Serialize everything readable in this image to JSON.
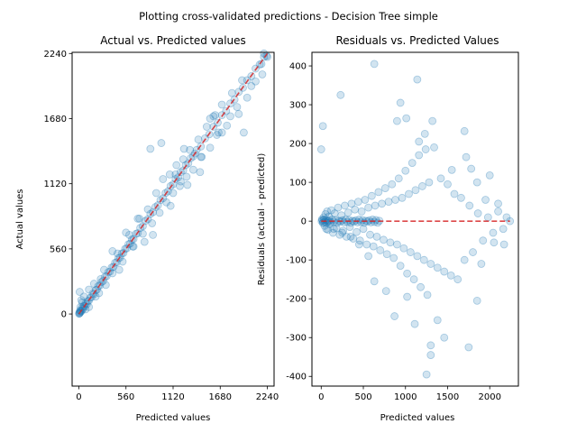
{
  "figure": {
    "suptitle": "Plotting cross-validated predictions - Decision Tree simple"
  },
  "chart_data": [
    {
      "type": "scatter",
      "title": "Actual vs. Predicted values",
      "xlabel": "Predicted values",
      "ylabel": "Actual values",
      "xlim": [
        -80,
        2320
      ],
      "ylim": [
        -620,
        2250
      ],
      "xticks": [
        0,
        560,
        1120,
        1680,
        2240
      ],
      "yticks": [
        0,
        560,
        1120,
        1680,
        2240
      ],
      "grid": false,
      "reference_line": {
        "from": [
          0,
          0
        ],
        "to": [
          2240,
          2240
        ],
        "style": "dashed",
        "color": "#d62728"
      },
      "point_color": "#1f77b4",
      "points": [
        [
          5,
          5
        ],
        [
          12,
          8
        ],
        [
          18,
          25
        ],
        [
          25,
          20
        ],
        [
          35,
          30
        ],
        [
          40,
          55
        ],
        [
          50,
          45
        ],
        [
          60,
          70
        ],
        [
          70,
          65
        ],
        [
          80,
          90
        ],
        [
          95,
          85
        ],
        [
          105,
          110
        ],
        [
          120,
          115
        ],
        [
          135,
          140
        ],
        [
          150,
          145
        ],
        [
          165,
          175
        ],
        [
          180,
          170
        ],
        [
          200,
          205
        ],
        [
          215,
          210
        ],
        [
          230,
          240
        ],
        [
          250,
          245
        ],
        [
          270,
          275
        ],
        [
          290,
          285
        ],
        [
          310,
          320
        ],
        [
          330,
          325
        ],
        [
          350,
          360
        ],
        [
          370,
          365
        ],
        [
          390,
          400
        ],
        [
          410,
          405
        ],
        [
          430,
          440
        ],
        [
          450,
          445
        ],
        [
          470,
          480
        ],
        [
          490,
          485
        ],
        [
          510,
          520
        ],
        [
          530,
          525
        ],
        [
          550,
          560
        ],
        [
          570,
          565
        ],
        [
          590,
          600
        ],
        [
          610,
          605
        ],
        [
          630,
          640
        ],
        [
          650,
          645
        ],
        [
          680,
          690
        ],
        [
          700,
          695
        ],
        [
          730,
          740
        ],
        [
          760,
          755
        ],
        [
          790,
          800
        ],
        [
          820,
          815
        ],
        [
          850,
          860
        ],
        [
          880,
          875
        ],
        [
          910,
          920
        ],
        [
          940,
          935
        ],
        [
          970,
          980
        ],
        [
          1000,
          995
        ],
        [
          1030,
          1040
        ],
        [
          1060,
          1055
        ],
        [
          1090,
          1100
        ],
        [
          1120,
          1115
        ],
        [
          1150,
          1160
        ],
        [
          1180,
          1175
        ],
        [
          1210,
          1220
        ],
        [
          1240,
          1235
        ],
        [
          1270,
          1280
        ],
        [
          1300,
          1295
        ],
        [
          1330,
          1340
        ],
        [
          1360,
          1355
        ],
        [
          1400,
          1410
        ],
        [
          1450,
          1440
        ],
        [
          1500,
          1510
        ],
        [
          1550,
          1545
        ],
        [
          1600,
          1610
        ],
        [
          1650,
          1645
        ],
        [
          1700,
          1710
        ],
        [
          1750,
          1745
        ],
        [
          1800,
          1810
        ],
        [
          1850,
          1845
        ],
        [
          1900,
          1910
        ],
        [
          1950,
          1945
        ],
        [
          2000,
          2010
        ],
        [
          2050,
          2045
        ],
        [
          2100,
          2110
        ],
        [
          2150,
          2145
        ],
        [
          2200,
          2210
        ],
        [
          2230,
          2220
        ],
        [
          10,
          190
        ],
        [
          30,
          120
        ],
        [
          60,
          150
        ],
        [
          120,
          60
        ],
        [
          200,
          150
        ],
        [
          260,
          300
        ],
        [
          320,
          250
        ],
        [
          400,
          350
        ],
        [
          460,
          520
        ],
        [
          520,
          450
        ],
        [
          600,
          680
        ],
        [
          650,
          580
        ],
        [
          700,
          820
        ],
        [
          760,
          690
        ],
        [
          820,
          900
        ],
        [
          870,
          780
        ],
        [
          920,
          1040
        ],
        [
          960,
          870
        ],
        [
          1000,
          1160
        ],
        [
          1040,
          960
        ],
        [
          1080,
          1200
        ],
        [
          1120,
          1040
        ],
        [
          1160,
          1280
        ],
        [
          1200,
          1100
        ],
        [
          1240,
          1330
        ],
        [
          1280,
          1180
        ],
        [
          1320,
          1410
        ],
        [
          1360,
          1240
        ],
        [
          1420,
          1500
        ],
        [
          1460,
          1350
        ],
        [
          1520,
          1610
        ],
        [
          1560,
          1430
        ],
        [
          1600,
          1700
        ],
        [
          1640,
          1540
        ],
        [
          1700,
          1800
        ],
        [
          1760,
          1620
        ],
        [
          1820,
          1900
        ],
        [
          1880,
          1780
        ],
        [
          1940,
          2010
        ],
        [
          2000,
          1860
        ],
        [
          850,
          1420
        ],
        [
          980,
          1470
        ],
        [
          1150,
          1200
        ],
        [
          1250,
          1420
        ],
        [
          1290,
          1110
        ],
        [
          1380,
          1380
        ],
        [
          1450,
          1350
        ],
        [
          1560,
          1680
        ],
        [
          1620,
          1710
        ],
        [
          1700,
          1560
        ],
        [
          1800,
          1700
        ],
        [
          1900,
          1720
        ],
        [
          1960,
          1560
        ],
        [
          2050,
          1960
        ],
        [
          2100,
          2000
        ],
        [
          2170,
          2150
        ],
        [
          2240,
          2210
        ],
        [
          2200,
          2240
        ],
        [
          2180,
          2060
        ],
        [
          1660,
          1560
        ],
        [
          1440,
          1220
        ],
        [
          1210,
          1140
        ],
        [
          1090,
          930
        ],
        [
          880,
          680
        ],
        [
          780,
          620
        ],
        [
          720,
          820
        ],
        [
          640,
          580
        ],
        [
          560,
          700
        ],
        [
          480,
          380
        ],
        [
          400,
          540
        ],
        [
          300,
          380
        ],
        [
          240,
          180
        ],
        [
          180,
          260
        ],
        [
          120,
          210
        ],
        [
          80,
          40
        ],
        [
          40,
          100
        ],
        [
          20,
          60
        ],
        [
          15,
          30
        ],
        [
          8,
          15
        ],
        [
          3,
          2
        ]
      ]
    },
    {
      "type": "scatter",
      "title": "Residuals vs. Predicted Values",
      "xlabel": "Predicted values",
      "ylabel": "Residuals (actual - predicted)",
      "xlim": [
        -110,
        2340
      ],
      "ylim": [
        -425,
        435
      ],
      "xticks": [
        0,
        500,
        1000,
        1500,
        2000
      ],
      "yticks": [
        -400,
        -300,
        -200,
        -100,
        0,
        100,
        200,
        300,
        400
      ],
      "grid": false,
      "reference_line": {
        "from": [
          0,
          0
        ],
        "to": [
          2240,
          0
        ],
        "style": "dashed",
        "color": "#d62728"
      },
      "point_color": "#1f77b4",
      "points": [
        [
          0,
          185
        ],
        [
          20,
          245
        ],
        [
          230,
          325
        ],
        [
          630,
          405
        ],
        [
          1140,
          365
        ],
        [
          940,
          305
        ],
        [
          900,
          258
        ],
        [
          1010,
          265
        ],
        [
          1320,
          258
        ],
        [
          1160,
          205
        ],
        [
          1230,
          225
        ],
        [
          1700,
          232
        ],
        [
          1780,
          135
        ],
        [
          2000,
          118
        ],
        [
          1550,
          132
        ],
        [
          1720,
          165
        ],
        [
          1850,
          100
        ],
        [
          1950,
          55
        ],
        [
          2100,
          45
        ],
        [
          2240,
          0
        ],
        [
          2170,
          -60
        ],
        [
          2050,
          -55
        ],
        [
          1900,
          -110
        ],
        [
          1850,
          -205
        ],
        [
          1750,
          -325
        ],
        [
          1460,
          -300
        ],
        [
          1300,
          -320
        ],
        [
          1300,
          -345
        ],
        [
          1250,
          -395
        ],
        [
          1380,
          -255
        ],
        [
          1110,
          -265
        ],
        [
          1020,
          -195
        ],
        [
          870,
          -245
        ],
        [
          770,
          -180
        ],
        [
          630,
          -155
        ],
        [
          560,
          -90
        ],
        [
          450,
          -60
        ],
        [
          350,
          -40
        ],
        [
          250,
          -30
        ],
        [
          150,
          -20
        ],
        [
          10,
          5
        ],
        [
          20,
          -5
        ],
        [
          30,
          10
        ],
        [
          40,
          -12
        ],
        [
          50,
          18
        ],
        [
          60,
          -20
        ],
        [
          70,
          25
        ],
        [
          80,
          -22
        ],
        [
          90,
          12
        ],
        [
          100,
          -8
        ],
        [
          120,
          28
        ],
        [
          140,
          -30
        ],
        [
          160,
          20
        ],
        [
          180,
          -18
        ],
        [
          200,
          35
        ],
        [
          220,
          -35
        ],
        [
          240,
          15
        ],
        [
          260,
          -25
        ],
        [
          280,
          40
        ],
        [
          300,
          -40
        ],
        [
          320,
          22
        ],
        [
          340,
          -15
        ],
        [
          360,
          45
        ],
        [
          380,
          -45
        ],
        [
          400,
          30
        ],
        [
          420,
          -28
        ],
        [
          440,
          50
        ],
        [
          460,
          -50
        ],
        [
          480,
          25
        ],
        [
          500,
          -20
        ],
        [
          520,
          55
        ],
        [
          540,
          -60
        ],
        [
          560,
          35
        ],
        [
          580,
          -35
        ],
        [
          600,
          65
        ],
        [
          620,
          -65
        ],
        [
          640,
          40
        ],
        [
          660,
          -40
        ],
        [
          680,
          75
        ],
        [
          700,
          -75
        ],
        [
          720,
          45
        ],
        [
          740,
          -48
        ],
        [
          760,
          85
        ],
        [
          780,
          -85
        ],
        [
          800,
          50
        ],
        [
          820,
          -55
        ],
        [
          840,
          95
        ],
        [
          860,
          -95
        ],
        [
          880,
          55
        ],
        [
          900,
          -60
        ],
        [
          920,
          110
        ],
        [
          940,
          -115
        ],
        [
          960,
          60
        ],
        [
          980,
          -70
        ],
        [
          1000,
          130
        ],
        [
          1020,
          -135
        ],
        [
          1040,
          70
        ],
        [
          1060,
          -80
        ],
        [
          1080,
          150
        ],
        [
          1100,
          -150
        ],
        [
          1120,
          80
        ],
        [
          1140,
          -90
        ],
        [
          1160,
          170
        ],
        [
          1180,
          -170
        ],
        [
          1200,
          90
        ],
        [
          1220,
          -100
        ],
        [
          1240,
          185
        ],
        [
          1260,
          -190
        ],
        [
          1280,
          100
        ],
        [
          1300,
          -110
        ],
        [
          1340,
          190
        ],
        [
          1380,
          -120
        ],
        [
          1420,
          110
        ],
        [
          1460,
          -130
        ],
        [
          1500,
          95
        ],
        [
          1540,
          -140
        ],
        [
          1580,
          70
        ],
        [
          1620,
          -150
        ],
        [
          1660,
          60
        ],
        [
          1700,
          -100
        ],
        [
          1760,
          40
        ],
        [
          1800,
          -80
        ],
        [
          1860,
          20
        ],
        [
          1920,
          -50
        ],
        [
          1980,
          10
        ],
        [
          2040,
          -30
        ],
        [
          2100,
          25
        ],
        [
          2160,
          -20
        ],
        [
          2200,
          10
        ],
        [
          5,
          0
        ],
        [
          15,
          2
        ],
        [
          25,
          -3
        ],
        [
          35,
          4
        ],
        [
          45,
          -2
        ],
        [
          55,
          3
        ],
        [
          65,
          -4
        ],
        [
          75,
          1
        ],
        [
          85,
          -1
        ],
        [
          95,
          2
        ],
        [
          110,
          -3
        ],
        [
          130,
          4
        ],
        [
          150,
          -2
        ],
        [
          170,
          3
        ],
        [
          190,
          -4
        ],
        [
          210,
          1
        ],
        [
          230,
          -1
        ],
        [
          250,
          2
        ],
        [
          270,
          -3
        ],
        [
          290,
          4
        ],
        [
          310,
          -2
        ],
        [
          330,
          3
        ],
        [
          350,
          -4
        ],
        [
          370,
          1
        ],
        [
          390,
          -1
        ],
        [
          410,
          2
        ],
        [
          430,
          -3
        ],
        [
          450,
          4
        ],
        [
          470,
          -2
        ],
        [
          490,
          3
        ],
        [
          510,
          -4
        ],
        [
          530,
          1
        ],
        [
          550,
          -1
        ],
        [
          570,
          2
        ],
        [
          590,
          -3
        ],
        [
          610,
          4
        ],
        [
          630,
          -2
        ],
        [
          650,
          3
        ],
        [
          670,
          -4
        ],
        [
          690,
          1
        ]
      ]
    }
  ]
}
